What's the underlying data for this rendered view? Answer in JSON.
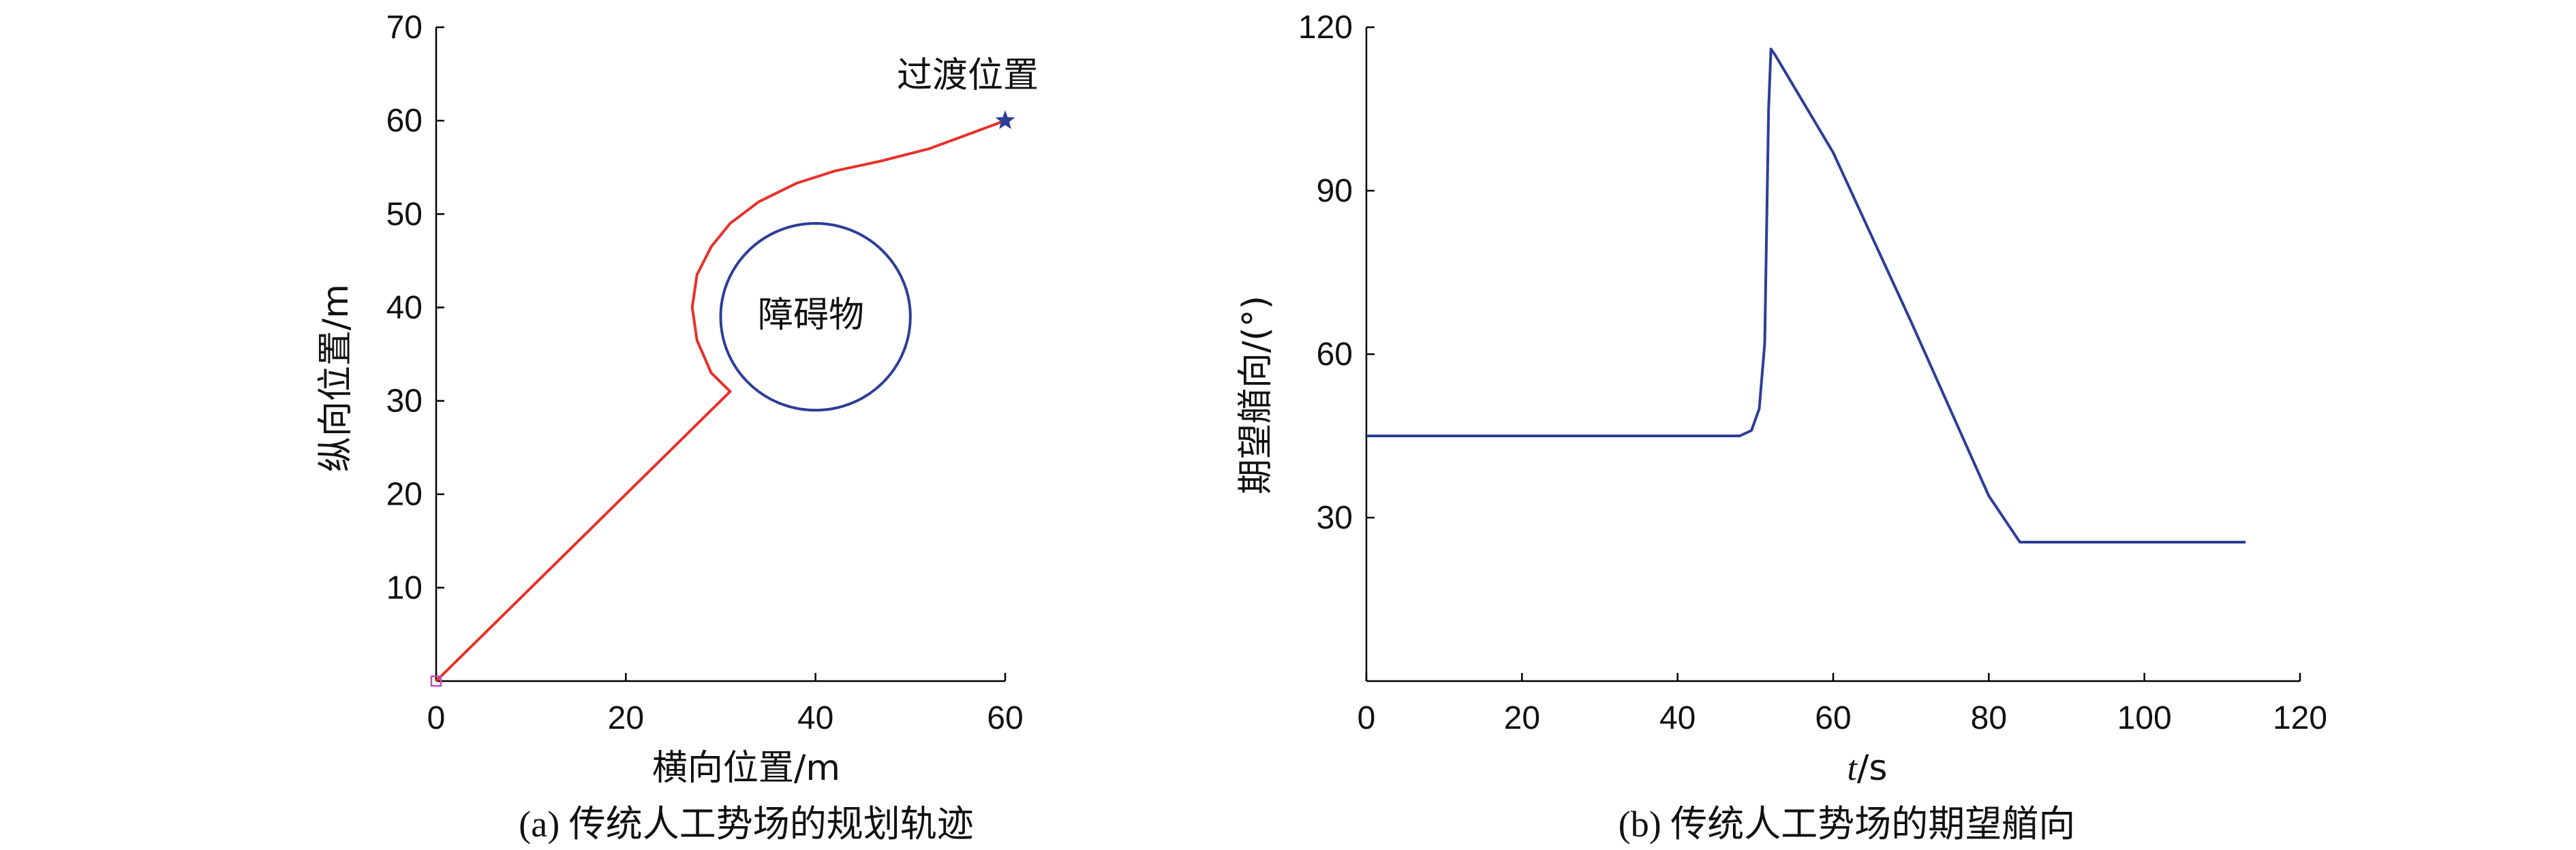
{
  "chart_data": [
    {
      "type": "line",
      "xlabel": "横向位置/m",
      "ylabel": "纵向位置/m",
      "caption": "(a) 传统人工势场的规划轨迹",
      "xlim": [
        0,
        60
      ],
      "ylim": [
        0,
        70
      ],
      "xticks": [
        0,
        20,
        40,
        60
      ],
      "yticks": [
        10,
        20,
        30,
        40,
        50,
        60,
        70
      ],
      "series": [
        {
          "color": "#e8302a",
          "x": [
            0,
            5,
            10,
            15,
            20,
            25,
            30,
            31,
            29,
            27.5,
            27,
            27.5,
            29,
            31,
            34,
            38,
            42,
            47,
            52,
            56,
            60
          ],
          "y": [
            0,
            5,
            10,
            15,
            20,
            25,
            30,
            31,
            33,
            36.5,
            40,
            43.5,
            46.5,
            49,
            51.3,
            53.3,
            54.6,
            55.7,
            57,
            58.5,
            60
          ]
        }
      ],
      "obstacle": {
        "label": "障碍物",
        "center": [
          40,
          39
        ],
        "radius": 10,
        "color": "#2c3e97"
      },
      "annotations": [
        {
          "text": "过渡位置",
          "x": 60,
          "y": 60,
          "marker": "star",
          "color": "#2c3e97"
        }
      ],
      "start_marker": {
        "x": 0,
        "y": 0,
        "shape": "square",
        "color": "#c04fb0"
      }
    },
    {
      "type": "line",
      "xlabel": "t/s",
      "ylabel": "期望艏向/(°)",
      "caption": "(b) 传统人工势场的期望艏向",
      "xlim": [
        0,
        120
      ],
      "ylim": [
        0,
        120
      ],
      "xticks": [
        0,
        20,
        40,
        60,
        80,
        100,
        120
      ],
      "yticks": [
        30,
        60,
        90,
        120
      ],
      "series": [
        {
          "color": "#2c3e97",
          "x": [
            0,
            48,
            49.5,
            50.5,
            51.2,
            51.7,
            52,
            52.5,
            60,
            70,
            80,
            84,
            113
          ],
          "y": [
            45,
            45,
            46,
            50,
            62,
            105,
            116,
            115,
            97,
            66,
            34,
            25.5,
            25.5
          ]
        }
      ]
    }
  ]
}
